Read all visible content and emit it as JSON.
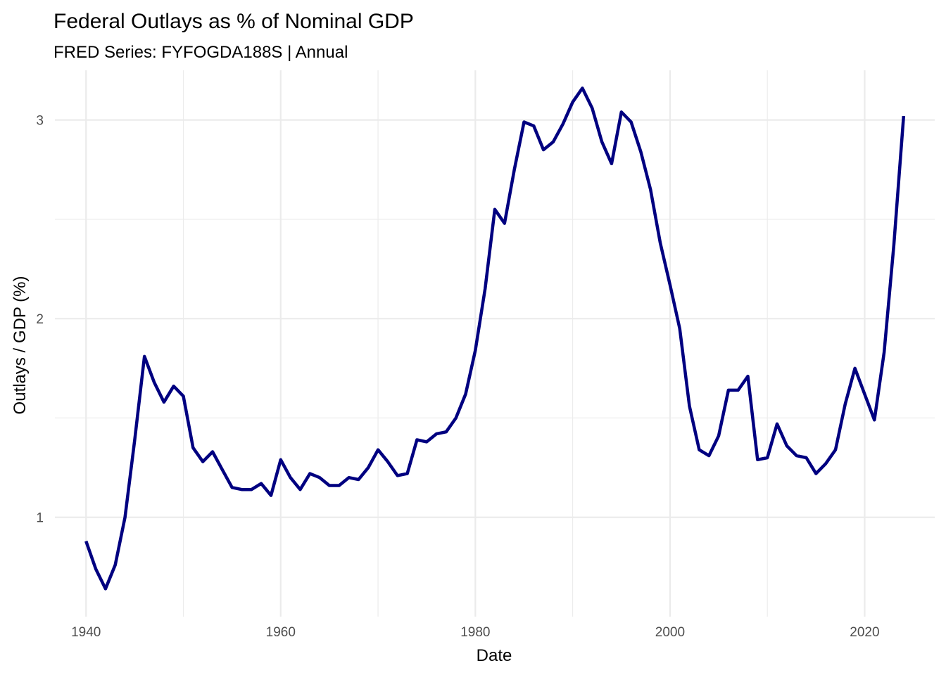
{
  "chart_data": {
    "type": "line",
    "title": "Federal Outlays as % of Nominal GDP",
    "subtitle": "FRED Series: FYFOGDA188S | Annual",
    "xlabel": "Date",
    "ylabel": "Outlays / GDP (%)",
    "xlim": [
      1936.8,
      2027.2
    ],
    "ylim": [
      0.5,
      3.25
    ],
    "x_ticks": [
      1940,
      1960,
      1980,
      2000,
      2020
    ],
    "x_tick_labels": [
      "1940",
      "1960",
      "1980",
      "2000",
      "2020"
    ],
    "x_minor_ticks": [
      1950,
      1970,
      1990,
      2010
    ],
    "y_ticks": [
      1,
      2,
      3
    ],
    "y_tick_labels": [
      "1",
      "2",
      "3"
    ],
    "y_minor_ticks": [
      1.5,
      2.5
    ],
    "grid": true,
    "legend": "none",
    "series_color": "#000080",
    "x": [
      1940,
      1941,
      1942,
      1943,
      1944,
      1945,
      1946,
      1947,
      1948,
      1949,
      1950,
      1951,
      1952,
      1953,
      1954,
      1955,
      1956,
      1957,
      1958,
      1959,
      1960,
      1961,
      1962,
      1963,
      1964,
      1965,
      1966,
      1967,
      1968,
      1969,
      1970,
      1971,
      1972,
      1973,
      1974,
      1975,
      1976,
      1977,
      1978,
      1979,
      1980,
      1981,
      1982,
      1983,
      1984,
      1985,
      1986,
      1987,
      1988,
      1989,
      1990,
      1991,
      1992,
      1993,
      1994,
      1995,
      1996,
      1997,
      1998,
      1999,
      2000,
      2001,
      2002,
      2003,
      2004,
      2005,
      2006,
      2007,
      2008,
      2009,
      2010,
      2011,
      2012,
      2013,
      2014,
      2015,
      2016,
      2017,
      2018,
      2019,
      2020,
      2021,
      2022,
      2023,
      2024
    ],
    "y": [
      0.88,
      0.74,
      0.64,
      0.76,
      1.0,
      1.39,
      1.81,
      1.68,
      1.58,
      1.66,
      1.61,
      1.35,
      1.28,
      1.33,
      1.24,
      1.15,
      1.14,
      1.14,
      1.17,
      1.11,
      1.29,
      1.2,
      1.14,
      1.22,
      1.2,
      1.16,
      1.16,
      1.2,
      1.19,
      1.25,
      1.34,
      1.28,
      1.21,
      1.22,
      1.39,
      1.38,
      1.42,
      1.43,
      1.5,
      1.62,
      1.84,
      2.15,
      2.55,
      2.48,
      2.75,
      2.99,
      2.97,
      2.85,
      2.89,
      2.98,
      3.09,
      3.16,
      3.06,
      2.89,
      2.78,
      3.04,
      2.99,
      2.84,
      2.65,
      2.38,
      2.17,
      1.95,
      1.56,
      1.34,
      1.31,
      1.41,
      1.64,
      1.64,
      1.71,
      1.29,
      1.3,
      1.47,
      1.36,
      1.31,
      1.3,
      1.22,
      1.27,
      1.34,
      1.57,
      1.75,
      1.62,
      1.49,
      1.83,
      2.37,
      3.02
    ]
  }
}
